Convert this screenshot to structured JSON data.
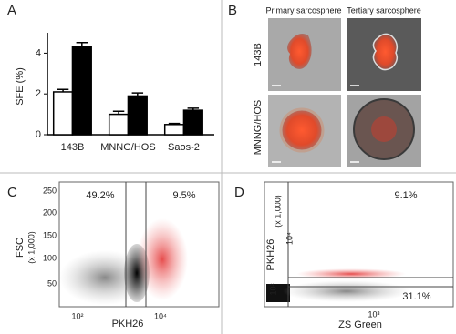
{
  "chart_data": {
    "type": "bar",
    "panel_label": "A",
    "y_label": "SFE (%)",
    "categories": [
      "143B",
      "MNNG/HOS",
      "Saos-2"
    ],
    "series": [
      {
        "color": "#ffffff",
        "values": [
          2.1,
          1.0,
          0.5
        ],
        "errors": [
          0.12,
          0.15,
          0.05
        ]
      },
      {
        "color": "#000000",
        "values": [
          4.3,
          1.9,
          1.2
        ],
        "errors": [
          0.22,
          0.15,
          0.1
        ]
      }
    ],
    "ylim": [
      0,
      5
    ],
    "yticks": [
      0,
      2,
      4
    ]
  },
  "panels": {
    "b": {
      "label": "B",
      "columns": [
        "Primary sarcosphere",
        "Tertiary sarcosphere"
      ],
      "rows": [
        "143B",
        "MNNG/HOS"
      ]
    },
    "c": {
      "label": "C",
      "y_label": "FSC",
      "y_unit": "(x 1,000)",
      "x_label": "PKH26",
      "y_ticks": [
        "250",
        "200",
        "150",
        "100",
        "50"
      ],
      "x_ticks": [
        "10²",
        "10⁴"
      ],
      "gates": [
        "49.2%",
        "9.5%"
      ]
    },
    "d": {
      "label": "D",
      "y_label": "PKH26",
      "y_unit": "(x 1,000)",
      "x_label": "ZS Green",
      "y_ticks": [
        "10⁴",
        "10²"
      ],
      "x_ticks": [
        "10³"
      ],
      "gates": [
        "9.1%",
        "31.1%"
      ]
    }
  }
}
